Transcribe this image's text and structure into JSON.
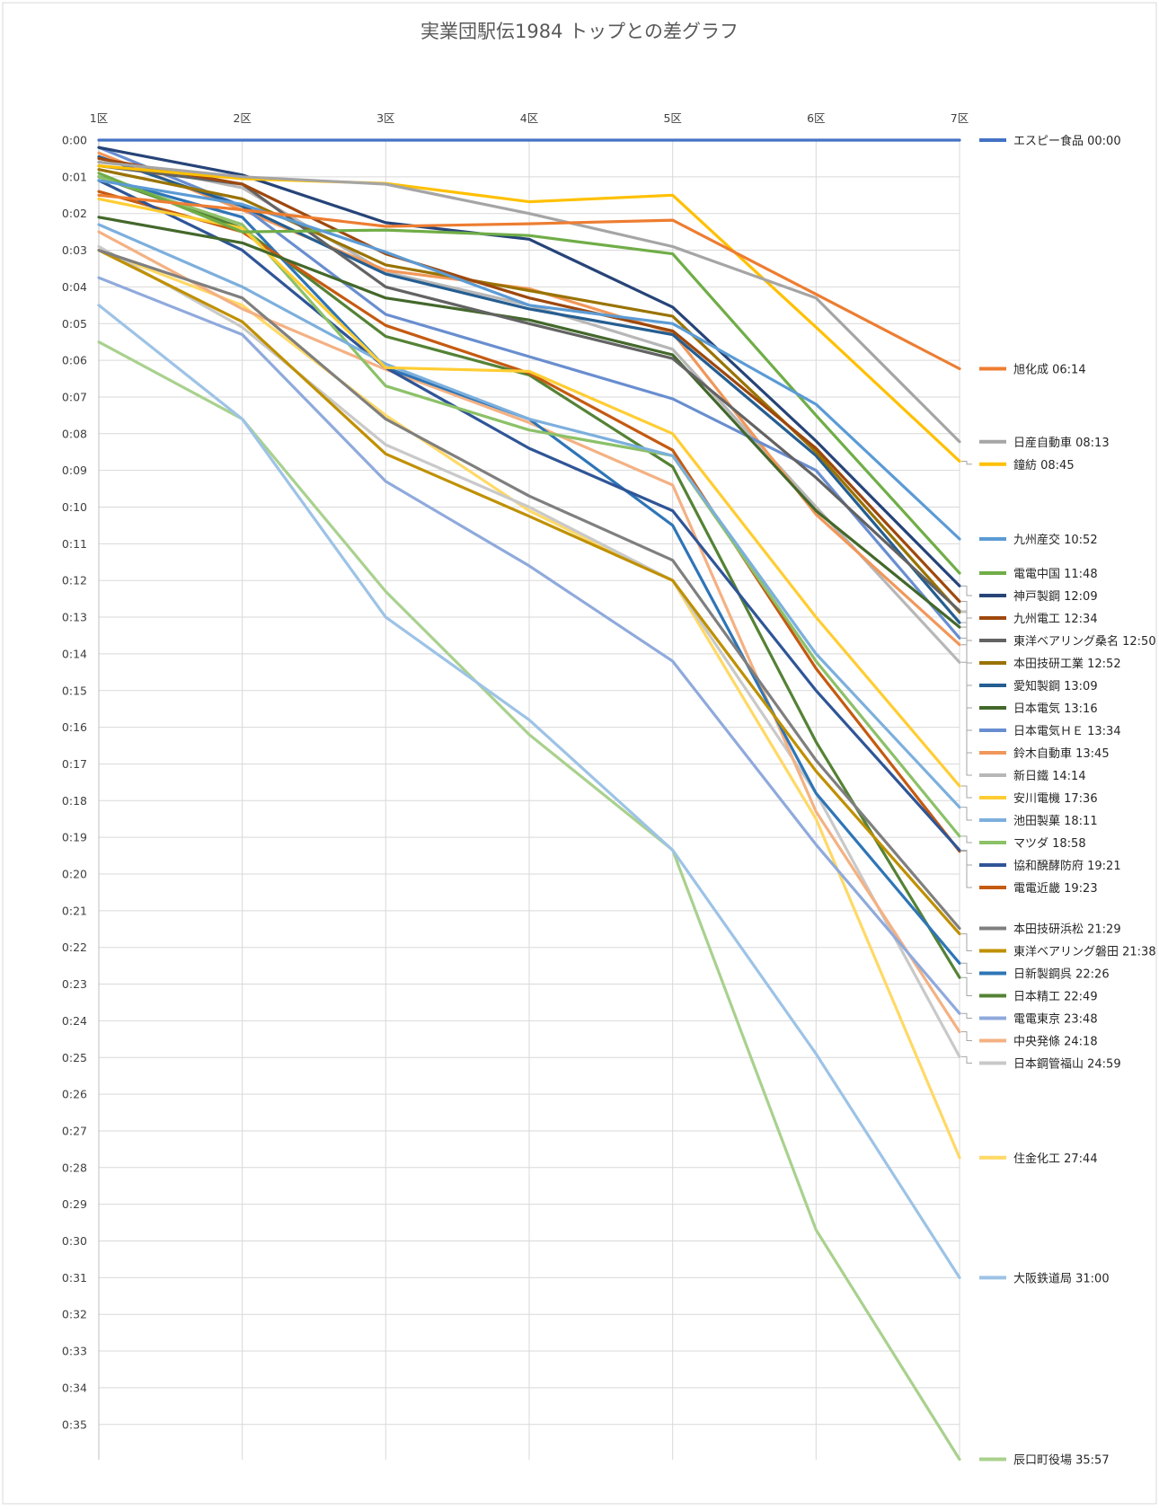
{
  "chart_data": {
    "type": "line",
    "title": "実業団駅伝1984 トップとの差グラフ",
    "categories": [
      "1区",
      "2区",
      "3区",
      "4区",
      "5区",
      "6区",
      "7区"
    ],
    "y_ticks": [
      "0:00",
      "0:01",
      "0:02",
      "0:03",
      "0:04",
      "0:05",
      "0:06",
      "0:07",
      "0:08",
      "0:09",
      "0:10",
      "0:11",
      "0:12",
      "0:13",
      "0:14",
      "0:15",
      "0:16",
      "0:17",
      "0:18",
      "0:19",
      "0:20",
      "0:21",
      "0:22",
      "0:23",
      "0:24",
      "0:25",
      "0:26",
      "0:27",
      "0:28",
      "0:29",
      "0:30",
      "0:31",
      "0:32",
      "0:33",
      "0:34",
      "0:35"
    ],
    "ylim": [
      0,
      35.95
    ],
    "y_reversed": true,
    "y_unit": "minutes behind leader",
    "grid": true,
    "legend_position": "right",
    "series": [
      {
        "name": "エスピー食品",
        "final": "00:00",
        "color": "#4472c4",
        "values": [
          0,
          0,
          0,
          0,
          0,
          0,
          0
        ]
      },
      {
        "name": "旭化成",
        "final": "06:14",
        "color": "#ed7d31",
        "values": [
          1.5,
          1.9,
          2.35,
          2.28,
          2.18,
          4.2,
          6.23
        ]
      },
      {
        "name": "日産自動車",
        "final": "08:13",
        "color": "#a5a5a5",
        "values": [
          0.6,
          1.0,
          1.2,
          2.0,
          2.9,
          4.3,
          8.22
        ]
      },
      {
        "name": "鐘紡",
        "final": "08:45",
        "color": "#ffc000",
        "values": [
          0.7,
          1.05,
          1.18,
          1.68,
          1.5,
          5.1,
          8.75
        ]
      },
      {
        "name": "九州産交",
        "final": "10:52",
        "color": "#5b9bd5",
        "values": [
          1.1,
          1.75,
          3.05,
          4.5,
          5.0,
          7.2,
          10.87
        ]
      },
      {
        "name": "電電中国",
        "final": "11:48",
        "color": "#70ad47",
        "values": [
          0.9,
          2.5,
          2.45,
          2.6,
          3.1,
          7.5,
          11.8
        ]
      },
      {
        "name": "神戸製鋼",
        "final": "12:09",
        "color": "#264478",
        "values": [
          0.2,
          0.95,
          2.25,
          2.7,
          4.55,
          8.2,
          12.15
        ]
      },
      {
        "name": "九州電工",
        "final": "12:34",
        "color": "#9e480e",
        "values": [
          0.5,
          1.2,
          3.1,
          4.3,
          5.2,
          8.4,
          12.57
        ]
      },
      {
        "name": "東洋ベアリング桑名",
        "final": "12:50",
        "color": "#636363",
        "values": [
          0.7,
          1.2,
          4.0,
          5.0,
          5.95,
          9.2,
          12.83
        ]
      },
      {
        "name": "本田技研工業",
        "final": "12:52",
        "color": "#997300",
        "values": [
          0.8,
          1.6,
          3.4,
          4.1,
          4.8,
          8.5,
          12.87
        ]
      },
      {
        "name": "愛知製鋼",
        "final": "13:09",
        "color": "#255e91",
        "values": [
          0.45,
          1.8,
          3.65,
          4.6,
          5.3,
          8.6,
          13.15
        ]
      },
      {
        "name": "日本電気",
        "final": "13:16",
        "color": "#43682b",
        "values": [
          2.1,
          2.8,
          4.3,
          4.9,
          5.85,
          10.1,
          13.27
        ]
      },
      {
        "name": "日本電気ＨＥ",
        "final": "13:34",
        "color": "#698ed0",
        "values": [
          0.2,
          1.8,
          4.75,
          5.9,
          7.05,
          9.0,
          13.57
        ]
      },
      {
        "name": "鈴木自動車",
        "final": "13:45",
        "color": "#f1975a",
        "values": [
          0.35,
          1.9,
          3.55,
          4.05,
          5.25,
          10.2,
          13.75
        ]
      },
      {
        "name": "新日鐵",
        "final": "14:14",
        "color": "#b7b7b7",
        "values": [
          0.5,
          1.3,
          3.6,
          4.5,
          5.7,
          10.0,
          14.23
        ]
      },
      {
        "name": "安川電機",
        "final": "17:36",
        "color": "#ffcd33",
        "values": [
          1.6,
          2.4,
          6.2,
          6.3,
          8.0,
          13.0,
          17.6
        ]
      },
      {
        "name": "池田製菓",
        "final": "18:11",
        "color": "#7cafdd",
        "values": [
          2.3,
          4.0,
          6.1,
          7.6,
          8.6,
          14.0,
          18.18
        ]
      },
      {
        "name": "マツダ",
        "final": "18:58",
        "color": "#8cc168",
        "values": [
          1.0,
          2.3,
          6.7,
          7.9,
          8.6,
          14.2,
          18.97
        ]
      },
      {
        "name": "協和醗酵防府",
        "final": "19:21",
        "color": "#2f5597",
        "values": [
          1.1,
          3.0,
          6.2,
          8.4,
          10.1,
          15.0,
          19.35
        ]
      },
      {
        "name": "電電近畿",
        "final": "19:23",
        "color": "#c55a11",
        "values": [
          1.4,
          2.5,
          5.05,
          6.35,
          8.45,
          14.4,
          19.38
        ]
      },
      {
        "name": "本田技研浜松",
        "final": "21:29",
        "color": "#7f7f7f",
        "values": [
          3.0,
          4.3,
          7.6,
          9.7,
          11.45,
          16.9,
          21.48
        ]
      },
      {
        "name": "東洋ベアリング磐田",
        "final": "21:38",
        "color": "#bf9000",
        "values": [
          3.0,
          4.95,
          8.55,
          10.25,
          12.0,
          17.2,
          21.63
        ]
      },
      {
        "name": "日新製鋼呉",
        "final": "22:26",
        "color": "#2e75b6",
        "values": [
          1.0,
          2.1,
          6.2,
          7.6,
          10.5,
          17.8,
          22.43
        ]
      },
      {
        "name": "日本精工",
        "final": "22:49",
        "color": "#548235",
        "values": [
          1.0,
          2.4,
          5.35,
          6.4,
          8.9,
          16.4,
          22.82
        ]
      },
      {
        "name": "電電東京",
        "final": "23:48",
        "color": "#8faadc",
        "values": [
          3.75,
          5.3,
          9.3,
          11.6,
          14.2,
          19.2,
          23.8
        ]
      },
      {
        "name": "中央発條",
        "final": "24:18",
        "color": "#f4b183",
        "values": [
          2.5,
          4.6,
          6.25,
          7.7,
          9.4,
          18.3,
          24.3
        ]
      },
      {
        "name": "日本鋼管福山",
        "final": "24:59",
        "color": "#c9c9c9",
        "values": [
          2.9,
          5.1,
          8.3,
          10.0,
          12.0,
          17.8,
          24.98
        ]
      },
      {
        "name": "住金化工",
        "final": "27:44",
        "color": "#ffd966",
        "values": [
          3.0,
          4.5,
          7.5,
          10.1,
          12.0,
          18.5,
          27.73
        ]
      },
      {
        "name": "大阪鉄道局",
        "final": "31:00",
        "color": "#9dc3e6",
        "values": [
          4.5,
          7.6,
          13.0,
          15.8,
          19.35,
          24.9,
          31.0
        ]
      },
      {
        "name": "辰口町役場",
        "final": "35:57",
        "color": "#a9d18e",
        "values": [
          5.5,
          7.6,
          12.3,
          16.2,
          19.35,
          29.7,
          35.95
        ]
      }
    ]
  }
}
